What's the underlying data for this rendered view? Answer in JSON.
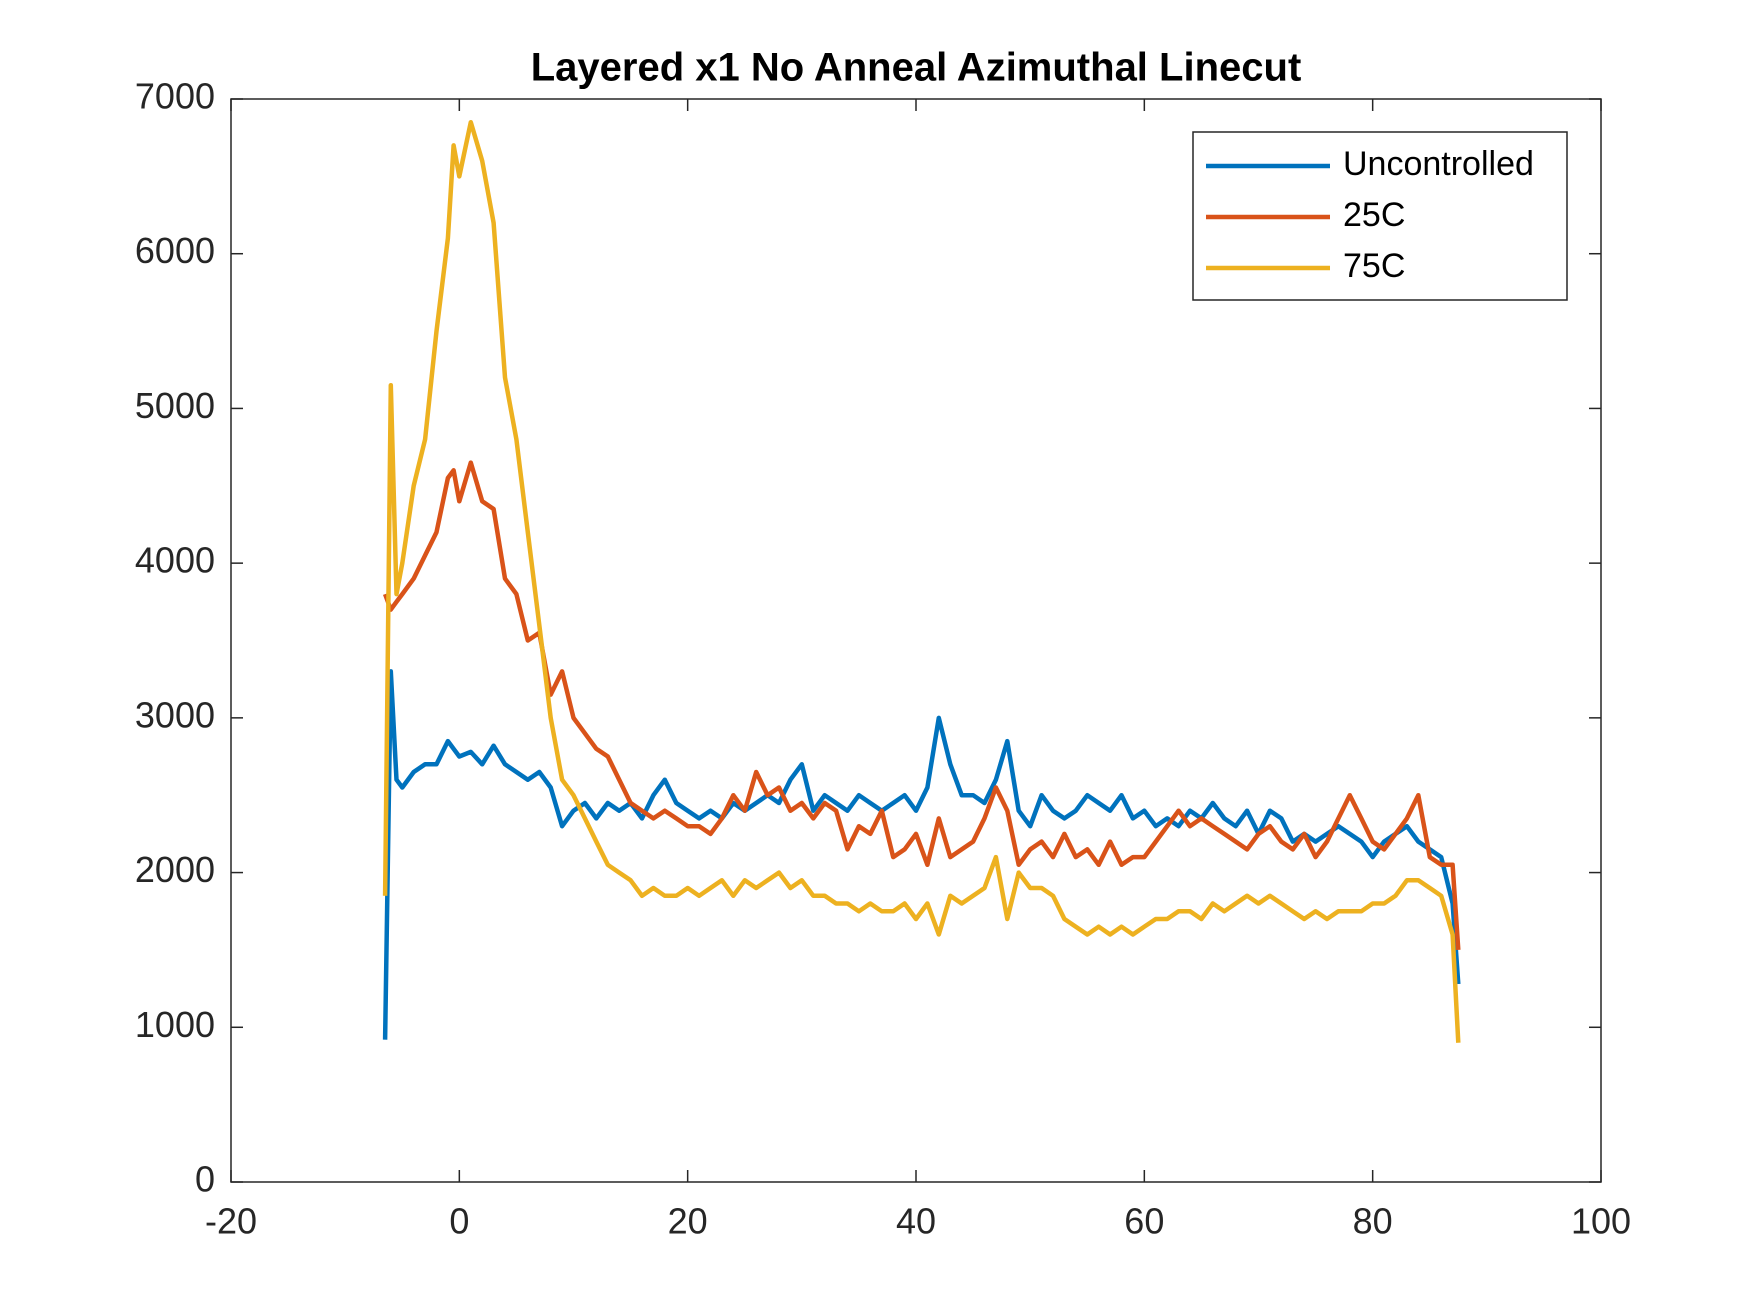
{
  "chart_data": {
    "type": "line",
    "title": "Layered x1 No Anneal Azimuthal Linecut",
    "x": [
      -6.5,
      -6,
      -5.5,
      -5,
      -4,
      -3,
      -2,
      -1,
      -0.5,
      0,
      1,
      2,
      3,
      4,
      5,
      6,
      7,
      8,
      9,
      10,
      11,
      12,
      13,
      14,
      15,
      16,
      17,
      18,
      19,
      20,
      21,
      22,
      23,
      24,
      25,
      26,
      27,
      28,
      29,
      30,
      31,
      32,
      33,
      34,
      35,
      36,
      37,
      38,
      39,
      40,
      41,
      42,
      43,
      44,
      45,
      46,
      47,
      48,
      49,
      50,
      51,
      52,
      53,
      54,
      55,
      56,
      57,
      58,
      59,
      60,
      61,
      62,
      63,
      64,
      65,
      66,
      67,
      68,
      69,
      70,
      71,
      72,
      73,
      74,
      75,
      76,
      77,
      78,
      79,
      80,
      81,
      82,
      83,
      84,
      85,
      86,
      87,
      87.5
    ],
    "series": [
      {
        "name": "Uncontrolled",
        "color": "#0072BD",
        "values": [
          920,
          3300,
          2600,
          2550,
          2650,
          2700,
          2700,
          2850,
          2800,
          2750,
          2780,
          2700,
          2820,
          2700,
          2650,
          2600,
          2650,
          2550,
          2300,
          2400,
          2450,
          2350,
          2450,
          2400,
          2450,
          2350,
          2500,
          2600,
          2450,
          2400,
          2350,
          2400,
          2350,
          2450,
          2400,
          2450,
          2500,
          2450,
          2600,
          2700,
          2400,
          2500,
          2450,
          2400,
          2500,
          2450,
          2400,
          2450,
          2500,
          2400,
          2550,
          3000,
          2700,
          2500,
          2500,
          2450,
          2600,
          2850,
          2400,
          2300,
          2500,
          2400,
          2350,
          2400,
          2500,
          2450,
          2400,
          2500,
          2350,
          2400,
          2300,
          2350,
          2300,
          2400,
          2350,
          2450,
          2350,
          2300,
          2400,
          2250,
          2400,
          2350,
          2200,
          2250,
          2200,
          2250,
          2300,
          2250,
          2200,
          2100,
          2200,
          2250,
          2300,
          2200,
          2150,
          2100,
          1800,
          1280
        ]
      },
      {
        "name": "25C",
        "color": "#D95319",
        "values": [
          3800,
          3700,
          3750,
          3800,
          3900,
          4050,
          4200,
          4550,
          4600,
          4400,
          4650,
          4400,
          4350,
          3900,
          3800,
          3500,
          3550,
          3150,
          3300,
          3000,
          2900,
          2800,
          2750,
          2600,
          2450,
          2400,
          2350,
          2400,
          2350,
          2300,
          2300,
          2250,
          2350,
          2500,
          2400,
          2650,
          2500,
          2550,
          2400,
          2450,
          2350,
          2450,
          2400,
          2150,
          2300,
          2250,
          2400,
          2100,
          2150,
          2250,
          2050,
          2350,
          2100,
          2150,
          2200,
          2350,
          2550,
          2400,
          2050,
          2150,
          2200,
          2100,
          2250,
          2100,
          2150,
          2050,
          2200,
          2050,
          2100,
          2100,
          2200,
          2300,
          2400,
          2300,
          2350,
          2300,
          2250,
          2200,
          2150,
          2250,
          2300,
          2200,
          2150,
          2250,
          2100,
          2200,
          2350,
          2500,
          2350,
          2200,
          2150,
          2250,
          2350,
          2500,
          2100,
          2050,
          2050,
          1500
        ]
      },
      {
        "name": "75C",
        "color": "#EDB120",
        "values": [
          1850,
          5150,
          3800,
          4000,
          4500,
          4800,
          5500,
          6100,
          6700,
          6500,
          6850,
          6600,
          6200,
          5200,
          4800,
          4200,
          3600,
          3000,
          2600,
          2500,
          2350,
          2200,
          2050,
          2000,
          1950,
          1850,
          1900,
          1850,
          1850,
          1900,
          1850,
          1900,
          1950,
          1850,
          1950,
          1900,
          1950,
          2000,
          1900,
          1950,
          1850,
          1850,
          1800,
          1800,
          1750,
          1800,
          1750,
          1750,
          1800,
          1700,
          1800,
          1600,
          1850,
          1800,
          1850,
          1900,
          2100,
          1700,
          2000,
          1900,
          1900,
          1850,
          1700,
          1650,
          1600,
          1650,
          1600,
          1650,
          1600,
          1650,
          1700,
          1700,
          1750,
          1750,
          1700,
          1800,
          1750,
          1800,
          1850,
          1800,
          1850,
          1800,
          1750,
          1700,
          1750,
          1700,
          1750,
          1750,
          1750,
          1800,
          1800,
          1850,
          1950,
          1950,
          1900,
          1850,
          1600,
          900
        ]
      }
    ],
    "xlim": [
      -20,
      100
    ],
    "xticks": [
      -20,
      0,
      20,
      40,
      60,
      80,
      100
    ],
    "ylim": [
      0,
      7000
    ],
    "yticks": [
      0,
      1000,
      2000,
      3000,
      4000,
      5000,
      6000,
      7000
    ],
    "grid": false,
    "legend": "northeast"
  }
}
